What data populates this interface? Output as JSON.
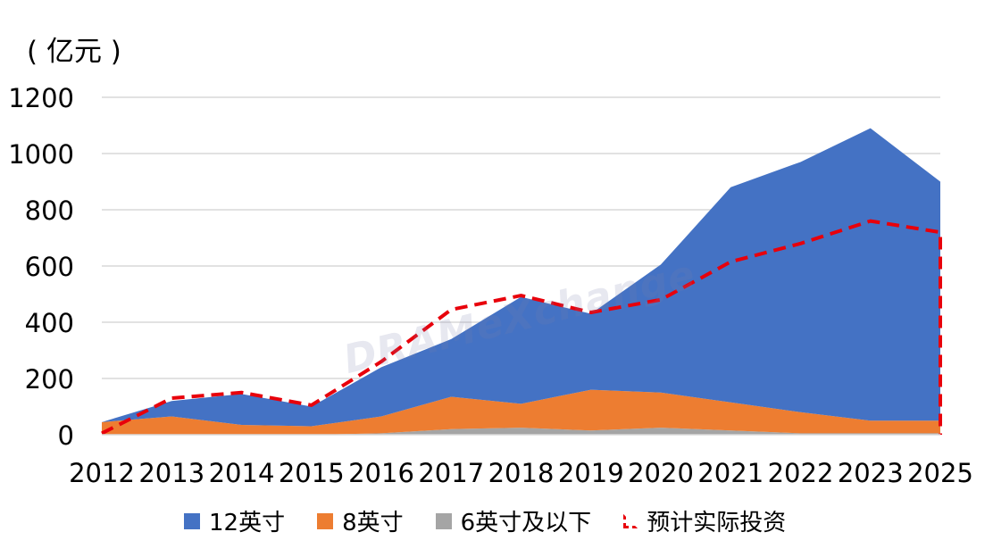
{
  "unit_label": "( 亿元 )",
  "watermark": "DRAMeXchange",
  "colors": {
    "s12": "#4472c4",
    "s8": "#ed7d31",
    "s6": "#a5a5a5",
    "planned": "#e8000b",
    "grid": "#d9d9d9"
  },
  "chart_data": {
    "type": "area",
    "title": "",
    "xlabel": "",
    "ylabel": "( 亿元 )",
    "ylim": [
      0,
      1200
    ],
    "yticks": [
      0,
      200,
      400,
      600,
      800,
      1000,
      1200
    ],
    "grid": true,
    "legend_position": "bottom",
    "categories": [
      "2012",
      "2013",
      "2014",
      "2015",
      "2016",
      "2017",
      "2018",
      "2019",
      "2020",
      "2021",
      "2022",
      "2023",
      "2025"
    ],
    "stacked": true,
    "series": [
      {
        "name": "6英寸及以下",
        "type": "area",
        "values": [
          0,
          0,
          0,
          0,
          5,
          20,
          25,
          15,
          25,
          15,
          5,
          5,
          5
        ]
      },
      {
        "name": "8英寸",
        "type": "area",
        "values": [
          45,
          65,
          35,
          30,
          60,
          115,
          85,
          145,
          125,
          100,
          75,
          45,
          45
        ]
      },
      {
        "name": "12英寸",
        "type": "area",
        "values": [
          0,
          55,
          110,
          70,
          175,
          205,
          380,
          270,
          455,
          765,
          890,
          1040,
          850
        ]
      },
      {
        "name": "预计实际投资",
        "type": "line",
        "values": [
          5,
          130,
          150,
          105,
          260,
          445,
          495,
          435,
          480,
          615,
          680,
          760,
          720
        ]
      }
    ]
  },
  "legend": [
    {
      "label": "12英寸",
      "key": "s12"
    },
    {
      "label": "8英寸",
      "key": "s8"
    },
    {
      "label": "6英寸及以下",
      "key": "s6"
    },
    {
      "label": "预计实际投资",
      "key": "planned"
    }
  ]
}
